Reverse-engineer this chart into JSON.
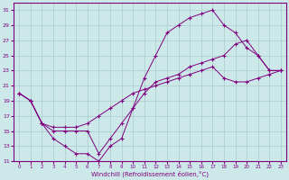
{
  "xlabel": "Windchill (Refroidissement éolien,°C)",
  "bg_color": "#cce8e8",
  "line_color": "#800080",
  "grid_color": "#aacccc",
  "xlim": [
    -0.5,
    23.5
  ],
  "ylim": [
    11,
    32
  ],
  "xticks": [
    0,
    1,
    2,
    3,
    4,
    5,
    6,
    7,
    8,
    9,
    10,
    11,
    12,
    13,
    14,
    15,
    16,
    17,
    18,
    19,
    20,
    21,
    22,
    23
  ],
  "yticks": [
    11,
    13,
    15,
    17,
    19,
    21,
    23,
    25,
    27,
    29,
    31
  ],
  "line1_x": [
    0,
    1,
    2,
    3,
    4,
    5,
    6,
    7,
    8,
    9,
    10,
    11,
    12,
    13,
    14,
    15,
    16,
    17,
    18,
    19,
    20,
    21,
    22,
    23
  ],
  "line1_y": [
    20,
    19,
    16,
    14,
    13,
    12,
    12,
    11,
    13,
    14,
    18,
    22,
    25,
    28,
    29,
    30,
    30.5,
    31,
    29,
    28,
    26,
    25,
    23,
    23
  ],
  "line2_x": [
    0,
    1,
    2,
    3,
    4,
    5,
    6,
    7,
    8,
    9,
    10,
    11,
    12,
    13,
    14,
    15,
    16,
    17,
    18,
    19,
    20,
    21,
    22,
    23
  ],
  "line2_y": [
    20,
    19,
    16,
    15.5,
    15.5,
    15.5,
    16,
    17,
    18,
    19,
    20,
    20.5,
    21,
    21.5,
    22,
    22.5,
    23,
    23.5,
    22,
    21.5,
    21.5,
    22,
    22.5,
    23
  ],
  "line3_x": [
    0,
    1,
    2,
    3,
    4,
    5,
    6,
    7,
    8,
    9,
    10,
    11,
    12,
    13,
    14,
    15,
    16,
    17,
    18,
    19,
    20,
    21,
    22,
    23
  ],
  "line3_y": [
    20,
    19,
    16,
    15,
    15,
    15,
    15,
    12,
    14,
    16,
    18,
    20,
    21.5,
    22,
    22.5,
    23.5,
    24,
    24.5,
    25,
    26.5,
    27,
    25,
    23,
    23
  ]
}
